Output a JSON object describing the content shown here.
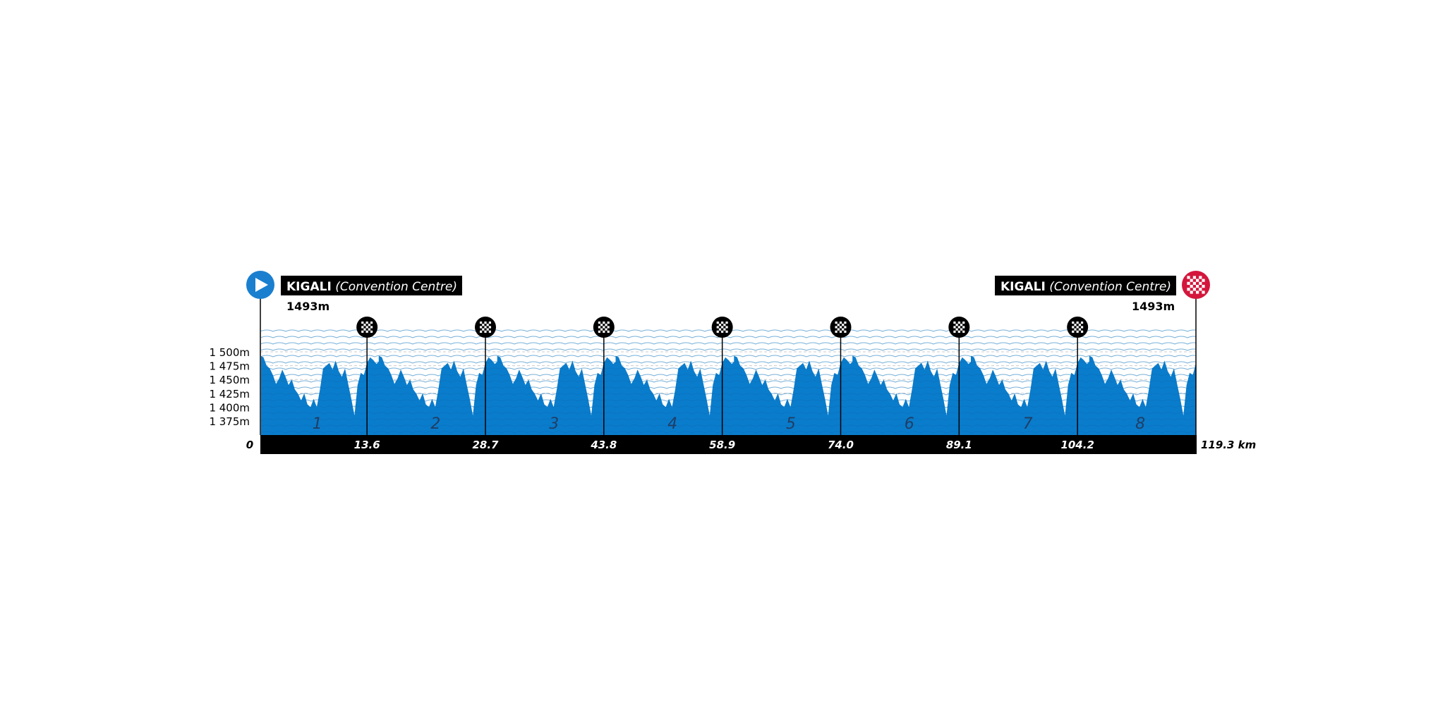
{
  "start": {
    "town": "KIGALI",
    "place": "(Convention Centre)",
    "elevation_label": "1493m"
  },
  "finish": {
    "town": "KIGALI",
    "place": "(Convention Centre)",
    "elevation_label": "1493m"
  },
  "colors": {
    "profile": "#0a7ccc",
    "profile_dark": "#0a6fb8",
    "start_marker": "#1a7fcf",
    "finish_marker": "#d4163c",
    "axis_bar": "#000000",
    "gridline": "#cccccc",
    "lap_number": "#1f3e66"
  },
  "chart_data": {
    "type": "area",
    "title": "",
    "xlabel": "",
    "ylabel": "",
    "x_unit": "km",
    "xlim": [
      0,
      119.3
    ],
    "ylim": [
      1350,
      1500
    ],
    "y_ticks": [
      1375,
      1400,
      1425,
      1450,
      1475,
      1500
    ],
    "y_tick_labels": [
      "1 375m",
      "1 400m",
      "1 425m",
      "1 450m",
      "1 475m",
      "1 500m"
    ],
    "x_tick_labels": [
      {
        "km": 0,
        "label": "0"
      },
      {
        "km": 13.6,
        "label": "13.6"
      },
      {
        "km": 28.7,
        "label": "28.7"
      },
      {
        "km": 43.8,
        "label": "43.8"
      },
      {
        "km": 58.9,
        "label": "58.9"
      },
      {
        "km": 74.0,
        "label": "74.0"
      },
      {
        "km": 89.1,
        "label": "89.1"
      },
      {
        "km": 104.2,
        "label": "104.2"
      },
      {
        "km": 119.3,
        "label": "119.3 km"
      }
    ],
    "laps": [
      {
        "label": "1",
        "from": 0,
        "to": 15.1
      },
      {
        "label": "2",
        "from": 15.1,
        "to": 30.2
      },
      {
        "label": "3",
        "from": 30.2,
        "to": 45.3
      },
      {
        "label": "4",
        "from": 45.3,
        "to": 60.4
      },
      {
        "label": "5",
        "from": 60.4,
        "to": 75.5
      },
      {
        "label": "6",
        "from": 75.5,
        "to": 90.6
      },
      {
        "label": "7",
        "from": 90.6,
        "to": 105.7
      },
      {
        "label": "8",
        "from": 105.7,
        "to": 119.3
      }
    ],
    "lap_finish_km": [
      13.6,
      28.7,
      43.8,
      58.9,
      74.0,
      89.1,
      104.2
    ],
    "lap_length_km": 15.1,
    "profile_lap_points": [
      {
        "km": 0.0,
        "elev": 1493
      },
      {
        "km": 0.4,
        "elev": 1490
      },
      {
        "km": 0.8,
        "elev": 1475
      },
      {
        "km": 1.2,
        "elev": 1470
      },
      {
        "km": 1.6,
        "elev": 1458
      },
      {
        "km": 2.0,
        "elev": 1442
      },
      {
        "km": 2.4,
        "elev": 1452
      },
      {
        "km": 2.8,
        "elev": 1468
      },
      {
        "km": 3.2,
        "elev": 1455
      },
      {
        "km": 3.6,
        "elev": 1440
      },
      {
        "km": 4.0,
        "elev": 1450
      },
      {
        "km": 4.4,
        "elev": 1432
      },
      {
        "km": 4.8,
        "elev": 1424
      },
      {
        "km": 5.2,
        "elev": 1412
      },
      {
        "km": 5.6,
        "elev": 1425
      },
      {
        "km": 6.0,
        "elev": 1405
      },
      {
        "km": 6.4,
        "elev": 1400
      },
      {
        "km": 6.8,
        "elev": 1415
      },
      {
        "km": 7.2,
        "elev": 1400
      },
      {
        "km": 7.6,
        "elev": 1432
      },
      {
        "km": 8.0,
        "elev": 1470
      },
      {
        "km": 8.4,
        "elev": 1475
      },
      {
        "km": 8.8,
        "elev": 1480
      },
      {
        "km": 9.2,
        "elev": 1468
      },
      {
        "km": 9.6,
        "elev": 1484
      },
      {
        "km": 10.0,
        "elev": 1465
      },
      {
        "km": 10.4,
        "elev": 1455
      },
      {
        "km": 10.8,
        "elev": 1470
      },
      {
        "km": 11.2,
        "elev": 1442
      },
      {
        "km": 11.6,
        "elev": 1415
      },
      {
        "km": 12.0,
        "elev": 1385
      },
      {
        "km": 12.4,
        "elev": 1440
      },
      {
        "km": 12.8,
        "elev": 1462
      },
      {
        "km": 13.2,
        "elev": 1458
      },
      {
        "km": 13.6,
        "elev": 1480
      },
      {
        "km": 14.0,
        "elev": 1490
      },
      {
        "km": 14.4,
        "elev": 1485
      },
      {
        "km": 14.8,
        "elev": 1478
      },
      {
        "km": 15.1,
        "elev": 1482
      }
    ]
  }
}
